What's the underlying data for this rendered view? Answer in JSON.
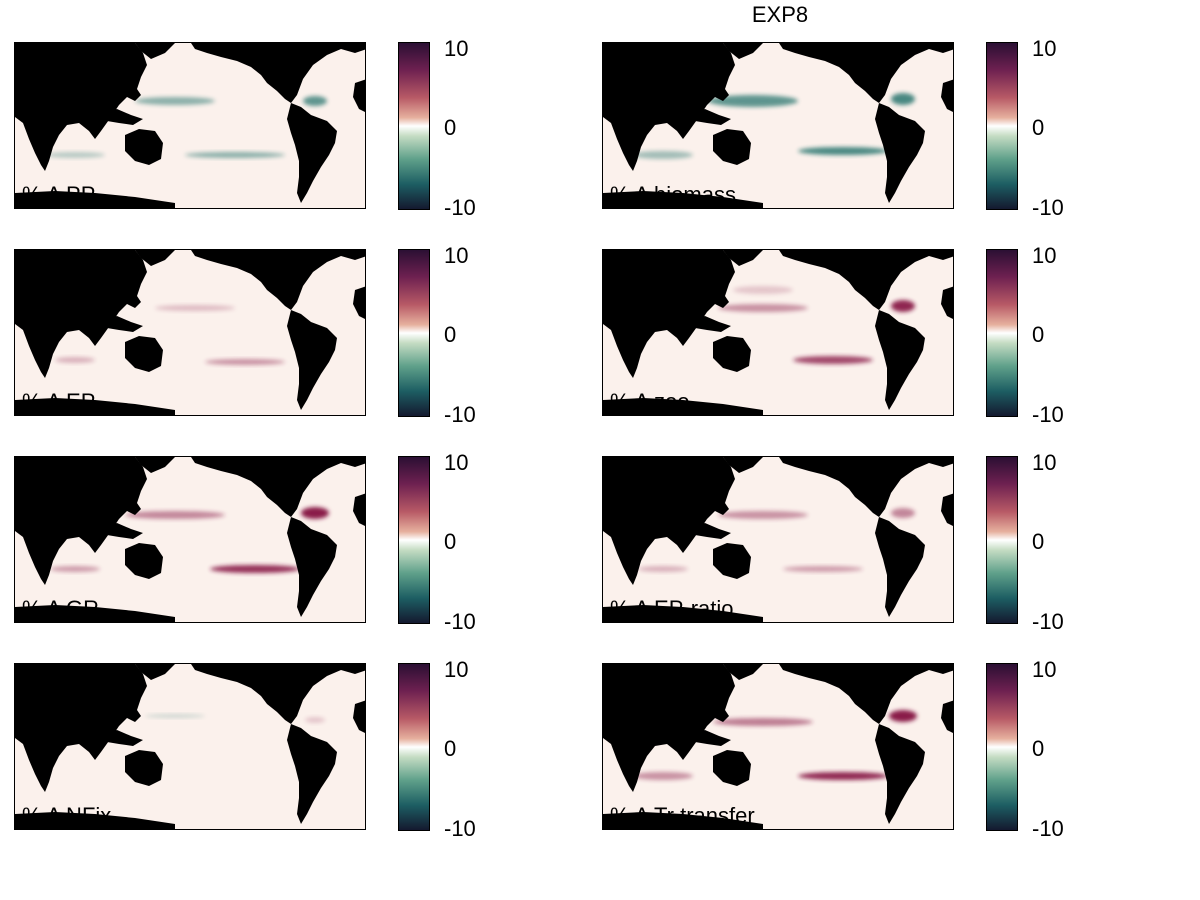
{
  "figure": {
    "title": "EXP8",
    "panels": [
      {
        "label": "% Δ PP",
        "col": 0,
        "row": 0
      },
      {
        "label": "% Δ biomass",
        "col": 1,
        "row": 0
      },
      {
        "label": "% Δ EP",
        "col": 0,
        "row": 1
      },
      {
        "label": "% Δ zoo",
        "col": 1,
        "row": 1
      },
      {
        "label": "% Δ GR",
        "col": 0,
        "row": 2
      },
      {
        "label": "% Δ EP-ratio",
        "col": 1,
        "row": 2
      },
      {
        "label": "% Δ NFix",
        "col": 0,
        "row": 3
      },
      {
        "label": "% Δ Tr transfer",
        "col": 1,
        "row": 3
      }
    ],
    "colorbar": {
      "ticks": [
        "10",
        "0",
        "-10"
      ],
      "range": [
        -10,
        10
      ],
      "colormap": "green-white-red diverging",
      "colors": [
        "#2b0f33",
        "#b85a66",
        "#ffffff",
        "#5fa08a",
        "#14192f"
      ]
    },
    "colors": {
      "land": "#000000",
      "ocean": "#fbf1ec",
      "positive_anomaly": "#8a1f4a",
      "negative_anomaly": "#1f6e68"
    }
  }
}
